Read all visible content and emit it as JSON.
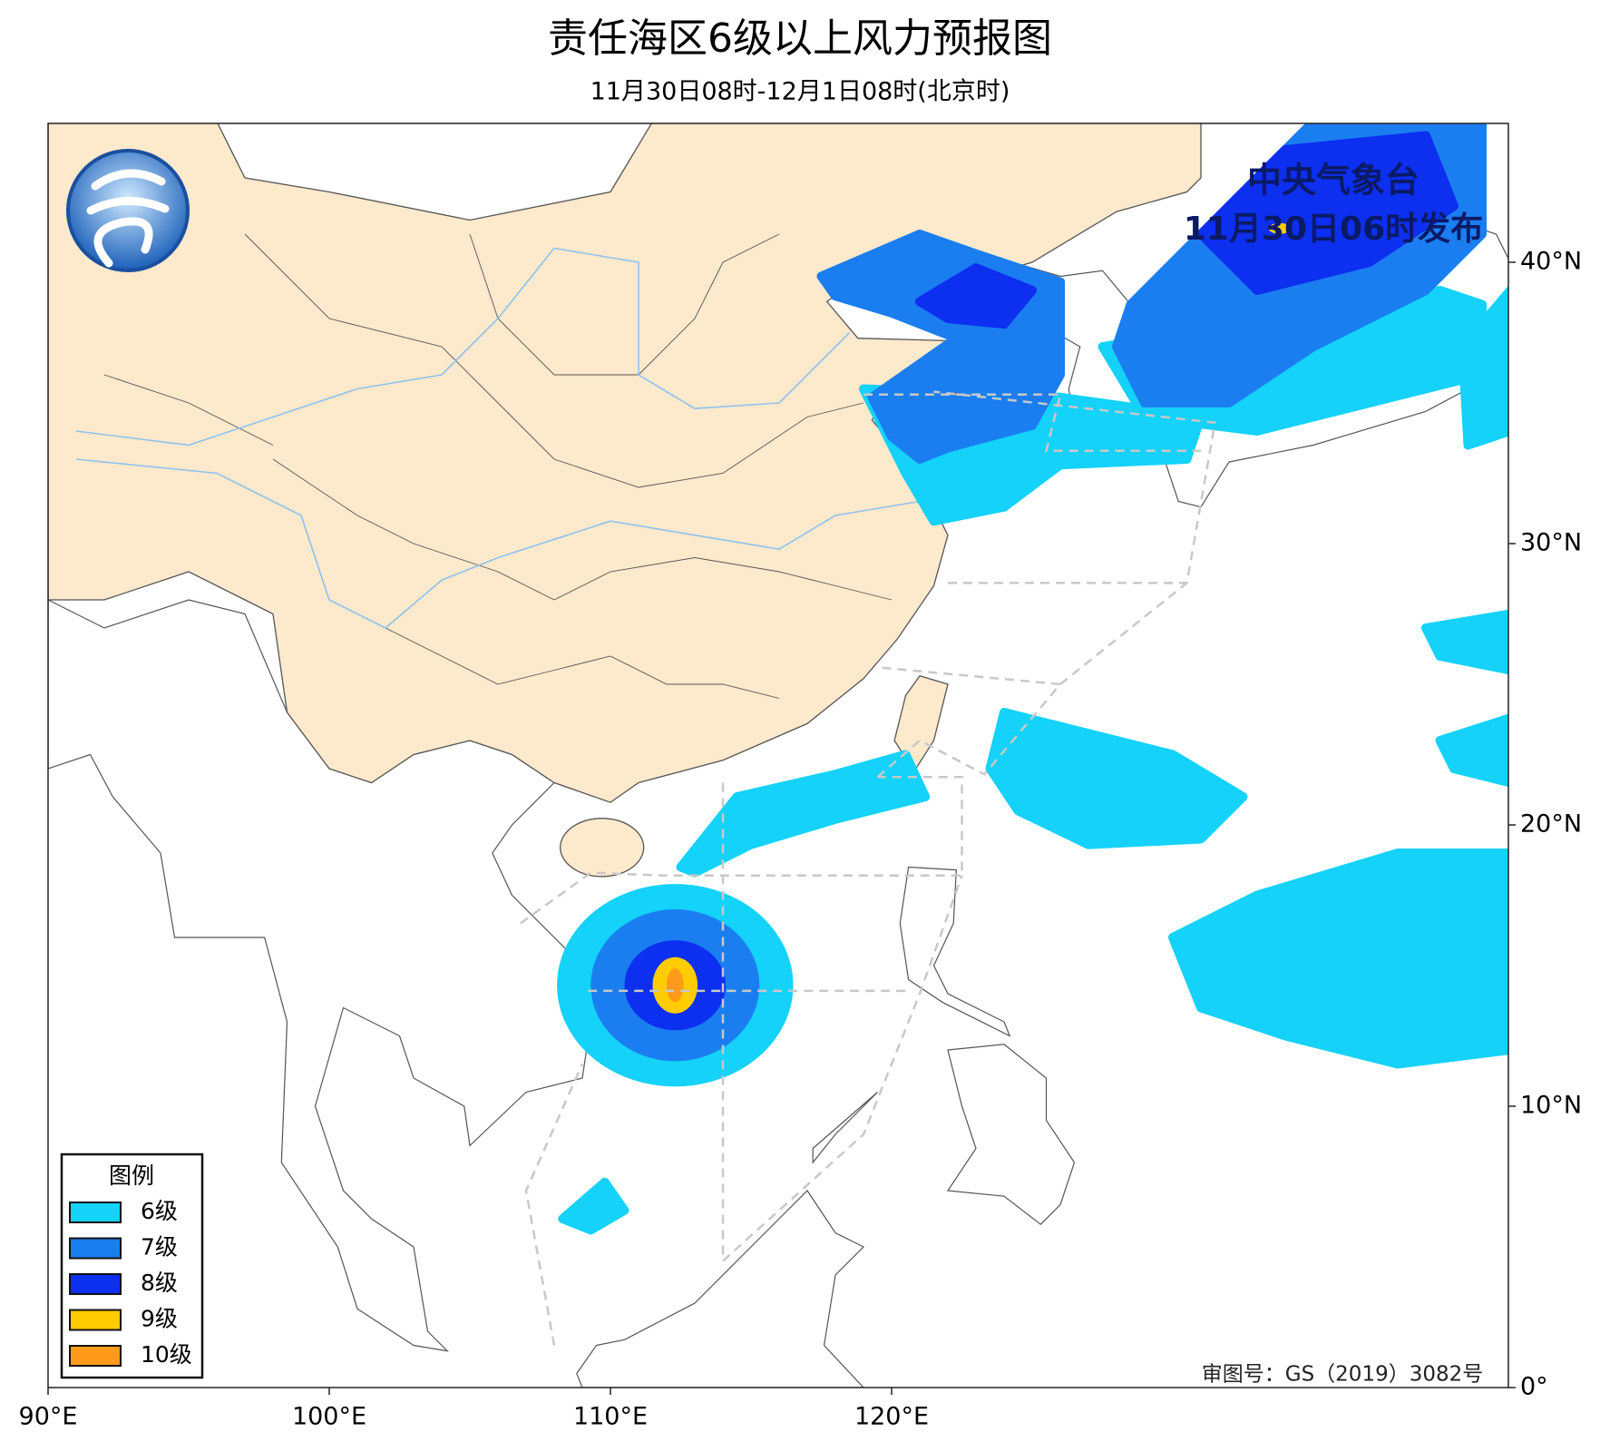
{
  "header": {
    "title": "责任海区6级以上风力预报图",
    "subtitle": "11月30日08时-12月1日08时(北京时)"
  },
  "issuer": {
    "name": "中央气象台",
    "time": "11月30日06时发布"
  },
  "map": {
    "lon_ticks": [
      "90°E",
      "100°E",
      "110°E",
      "120°E"
    ],
    "lat_ticks": [
      "40°N",
      "30°N",
      "20°N",
      "10°N",
      "0°"
    ],
    "china_color": "#fde9cc",
    "land_color": "#ffffff",
    "border_color": "#555555",
    "river_color": "#8ec3ee",
    "zone_line_color": "#c8c8c8"
  },
  "legend": {
    "title": "图例",
    "items": [
      {
        "label": "6级",
        "color": "#14d2fa"
      },
      {
        "label": "7级",
        "color": "#1a7ef0"
      },
      {
        "label": "8级",
        "color": "#0c2ff0"
      },
      {
        "label": "9级",
        "color": "#ffcc00"
      },
      {
        "label": "10级",
        "color": "#ff9a1a"
      }
    ]
  },
  "footer": {
    "approval": "审图号：GS（2019）3082号"
  }
}
